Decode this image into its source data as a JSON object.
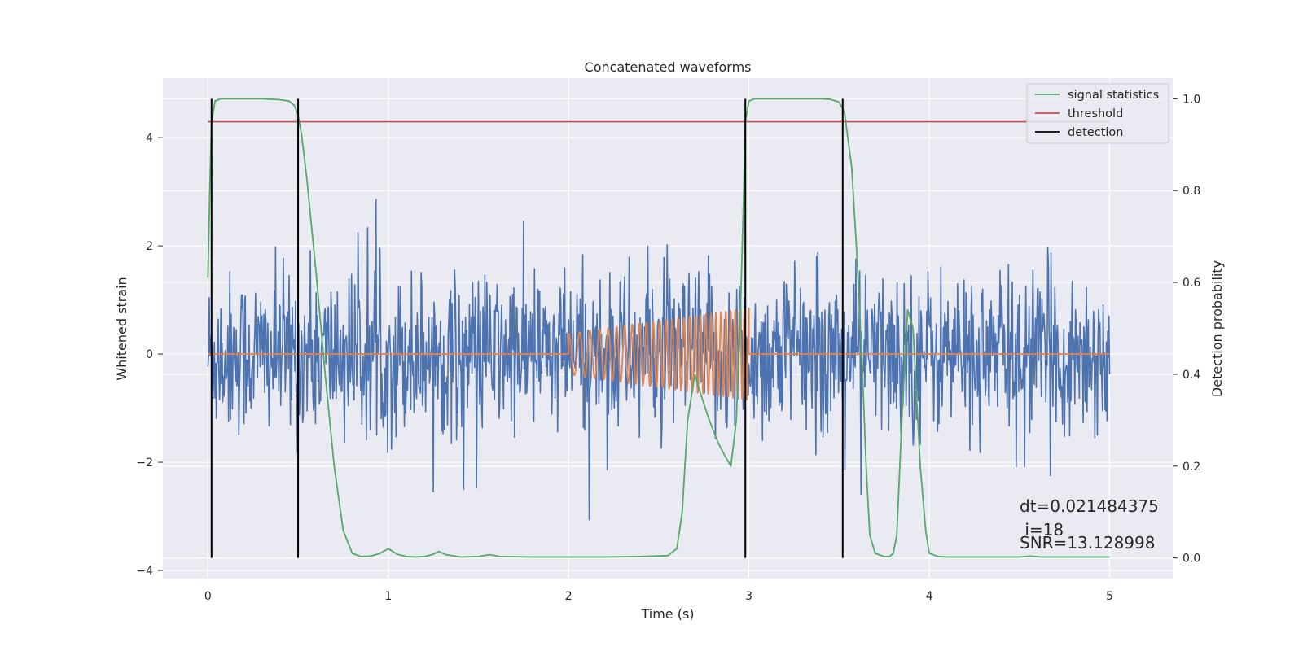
{
  "chart_data": {
    "type": "line",
    "title": "Concatenated waveforms",
    "xlabel": "Time (s)",
    "ylabel": "Whitened strain",
    "ylabel_right": "Detection probability",
    "xlim": [
      -0.25,
      5.35
    ],
    "ylim": [
      -4.15,
      5.1
    ],
    "ylim_right": [
      -0.045,
      1.045
    ],
    "x_ticks": [
      0,
      1,
      2,
      3,
      4,
      5
    ],
    "y_ticks": [
      -4,
      -2,
      0,
      2,
      4
    ],
    "y_ticks_right": [
      0.0,
      0.2,
      0.4,
      0.6,
      0.8,
      1.0
    ],
    "x_tick_labels": [
      "0",
      "1",
      "2",
      "3",
      "4",
      "5"
    ],
    "y_tick_labels": [
      "−4",
      "−2",
      "0",
      "2",
      "4"
    ],
    "y_tick_labels_right": [
      "0.0",
      "0.2",
      "0.4",
      "0.6",
      "0.8",
      "1.0"
    ],
    "grid": true,
    "legend_position": "top-right",
    "colors": {
      "strain": "#4c72b0",
      "template": "#dd8452",
      "signal_statistics": "#55a868",
      "threshold": "#c44e52",
      "detection": "#000000",
      "plot_background": "#eaeaf2"
    },
    "series": [
      {
        "name": "signal statistics",
        "axis": "right",
        "x": [
          0.0,
          0.01,
          0.02,
          0.04,
          0.07,
          0.1,
          0.2,
          0.3,
          0.4,
          0.45,
          0.48,
          0.5,
          0.52,
          0.55,
          0.6,
          0.65,
          0.7,
          0.75,
          0.8,
          0.85,
          0.9,
          0.95,
          1.0,
          1.05,
          1.1,
          1.15,
          1.2,
          1.25,
          1.28,
          1.32,
          1.4,
          1.5,
          1.56,
          1.62,
          1.8,
          2.0,
          2.2,
          2.4,
          2.55,
          2.6,
          2.63,
          2.66,
          2.7,
          2.73,
          2.78,
          2.83,
          2.87,
          2.9,
          2.93,
          2.95,
          2.97,
          2.98,
          3.0,
          3.03,
          3.06,
          3.1,
          3.2,
          3.3,
          3.4,
          3.45,
          3.5,
          3.53,
          3.57,
          3.6,
          3.63,
          3.65,
          3.67,
          3.7,
          3.75,
          3.78,
          3.8,
          3.82,
          3.85,
          3.88,
          3.91,
          3.93,
          3.95,
          3.98,
          4.0,
          4.05,
          4.1,
          4.3,
          4.5,
          4.56,
          4.62,
          4.8,
          5.0
        ],
        "y": [
          0.61,
          0.8,
          0.95,
          0.995,
          1.0,
          1.0,
          1.0,
          1.0,
          0.998,
          0.995,
          0.985,
          0.965,
          0.92,
          0.82,
          0.62,
          0.4,
          0.2,
          0.06,
          0.01,
          0.003,
          0.004,
          0.009,
          0.02,
          0.008,
          0.003,
          0.002,
          0.003,
          0.008,
          0.014,
          0.007,
          0.002,
          0.003,
          0.007,
          0.003,
          0.002,
          0.002,
          0.002,
          0.003,
          0.005,
          0.02,
          0.1,
          0.3,
          0.4,
          0.36,
          0.3,
          0.25,
          0.22,
          0.2,
          0.3,
          0.5,
          0.78,
          0.95,
          0.995,
          1.0,
          1.0,
          1.0,
          1.0,
          1.0,
          1.0,
          0.999,
          0.993,
          0.97,
          0.85,
          0.65,
          0.4,
          0.2,
          0.05,
          0.01,
          0.003,
          0.003,
          0.01,
          0.05,
          0.32,
          0.54,
          0.5,
          0.35,
          0.2,
          0.06,
          0.01,
          0.003,
          0.002,
          0.002,
          0.002,
          0.004,
          0.002,
          0.002,
          0.002
        ]
      },
      {
        "name": "threshold",
        "axis": "right",
        "x": [
          0.0,
          5.0
        ],
        "y": [
          0.95,
          0.95
        ]
      },
      {
        "name": "detection",
        "axis": "right",
        "type": "vlines",
        "x": [
          0.02,
          0.5,
          2.98,
          3.52
        ],
        "y_range": [
          0.0,
          1.0
        ]
      }
    ],
    "unnamed_series": [
      {
        "label": "strain",
        "axis": "left",
        "sigma": 0.75,
        "x_range": [
          0.0,
          5.0
        ],
        "note": "dense noisy whitened strain trace"
      },
      {
        "label": "template",
        "axis": "left",
        "segments": [
          {
            "x": [
              0.0,
              2.0
            ],
            "amplitude": 0.0
          },
          {
            "x": [
              2.0,
              3.0
            ],
            "amplitude_start": 0.38,
            "amplitude_end": 0.85,
            "cycles": 28
          },
          {
            "x": [
              3.0,
              5.0
            ],
            "amplitude": 0.0
          }
        ]
      }
    ],
    "annotations": [
      "dt=0.021484375",
      " i=18",
      "SNR=13.128998"
    ]
  }
}
